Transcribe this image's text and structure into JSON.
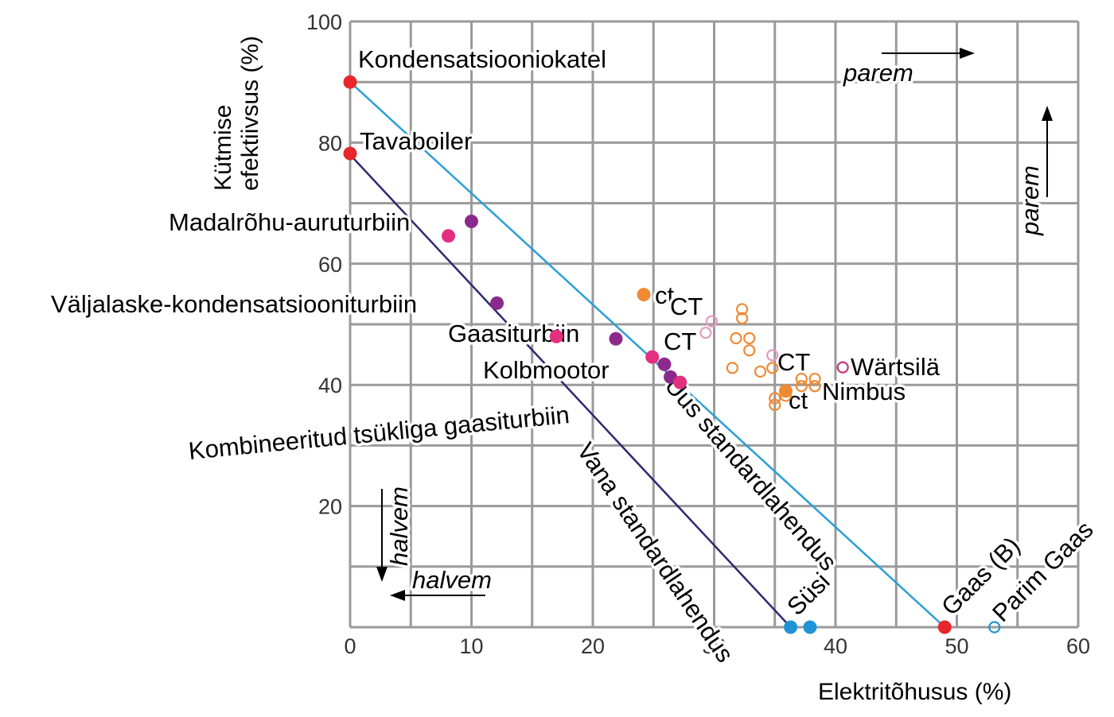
{
  "chart_data": {
    "type": "scatter",
    "xlabel": "Elektritõhusus (%)",
    "ylabel": [
      "Kütmise",
      "efektiivsus (%)"
    ],
    "xlim": [
      0,
      60
    ],
    "ylim": [
      0,
      100
    ],
    "xticks": [
      0,
      10,
      20,
      30,
      40,
      50,
      60
    ],
    "yticks": [
      20,
      40,
      60,
      80,
      100
    ],
    "grid": true,
    "colors": {
      "red": "#e8262b",
      "purple": "#8b2a8c",
      "pink": "#e32f7f",
      "orange": "#ef8a34",
      "lightpink": "#e59ac0",
      "magenta": "#c2367f",
      "blue": "#1f93d6",
      "grid": "#9a9a9a",
      "new_line": "#2a9fd6",
      "old_line": "#2e2870"
    },
    "lines": [
      {
        "name": "Uus standardlahendus",
        "points": [
          [
            0,
            90
          ],
          [
            49,
            0
          ]
        ],
        "color": "new_line"
      },
      {
        "name": "Vana standardlahendus",
        "points": [
          [
            0,
            78
          ],
          [
            36.3,
            0
          ]
        ],
        "color": "old_line"
      }
    ],
    "points": [
      {
        "x": 0,
        "y": 90,
        "color": "red",
        "filled": true
      },
      {
        "x": 0,
        "y": 78.2,
        "color": "red",
        "filled": true
      },
      {
        "x": 10,
        "y": 67,
        "color": "purple",
        "filled": true
      },
      {
        "x": 8.1,
        "y": 64.6,
        "color": "pink",
        "filled": true
      },
      {
        "x": 12.1,
        "y": 53.5,
        "color": "purple",
        "filled": true
      },
      {
        "x": 17,
        "y": 48,
        "color": "pink",
        "filled": true
      },
      {
        "x": 21.9,
        "y": 47.6,
        "color": "purple",
        "filled": true
      },
      {
        "x": 24.9,
        "y": 44.6,
        "color": "pink",
        "filled": true
      },
      {
        "x": 25.9,
        "y": 43.4,
        "color": "purple",
        "filled": true
      },
      {
        "x": 26.4,
        "y": 41.3,
        "color": "purple",
        "filled": true
      },
      {
        "x": 27.2,
        "y": 40.4,
        "color": "pink",
        "filled": true
      },
      {
        "x": 24.2,
        "y": 54.9,
        "color": "orange",
        "filled": true
      },
      {
        "x": 35.9,
        "y": 39,
        "color": "orange",
        "filled": true
      },
      {
        "x": 32.3,
        "y": 52.5,
        "color": "orange",
        "filled": false
      },
      {
        "x": 32.3,
        "y": 51,
        "color": "orange",
        "filled": false
      },
      {
        "x": 31.8,
        "y": 47.7,
        "color": "orange",
        "filled": false
      },
      {
        "x": 32.9,
        "y": 47.7,
        "color": "orange",
        "filled": false
      },
      {
        "x": 32.9,
        "y": 45.7,
        "color": "orange",
        "filled": false
      },
      {
        "x": 31.5,
        "y": 42.8,
        "color": "orange",
        "filled": false
      },
      {
        "x": 33.8,
        "y": 42.2,
        "color": "orange",
        "filled": false
      },
      {
        "x": 34.8,
        "y": 42.8,
        "color": "orange",
        "filled": false
      },
      {
        "x": 37.2,
        "y": 41,
        "color": "orange",
        "filled": false
      },
      {
        "x": 38.3,
        "y": 41,
        "color": "orange",
        "filled": false
      },
      {
        "x": 37.2,
        "y": 39.8,
        "color": "orange",
        "filled": false
      },
      {
        "x": 38.3,
        "y": 39.8,
        "color": "orange",
        "filled": false
      },
      {
        "x": 35,
        "y": 37.8,
        "color": "orange",
        "filled": false
      },
      {
        "x": 35,
        "y": 36.7,
        "color": "orange",
        "filled": false
      },
      {
        "x": 35.9,
        "y": 38.2,
        "color": "orange",
        "filled": false
      },
      {
        "x": 29.8,
        "y": 50.5,
        "color": "lightpink",
        "filled": false
      },
      {
        "x": 29.3,
        "y": 48.6,
        "color": "lightpink",
        "filled": false
      },
      {
        "x": 34.8,
        "y": 44.9,
        "color": "lightpink",
        "filled": false
      },
      {
        "x": 40.6,
        "y": 42.9,
        "color": "magenta",
        "filled": false
      },
      {
        "x": 36.3,
        "y": 0,
        "color": "blue",
        "filled": true
      },
      {
        "x": 37.9,
        "y": 0,
        "color": "blue",
        "filled": true
      },
      {
        "x": 49,
        "y": 0,
        "color": "red",
        "filled": true
      },
      {
        "x": 53.1,
        "y": 0,
        "color": "blue",
        "filled": false
      }
    ],
    "annotations": [
      "Kondensatsiooniokatel",
      "Tavaboiler",
      "Madalrõhu-auruturbiin",
      "Väljalaske-kondensatsiooniturbiin",
      "Gaasiturbiin",
      "Kolbmootor",
      "Kombineeritud tsükliga gaasiturbiin",
      "ct",
      "CT",
      "CT",
      "CT",
      "ct",
      "Nimbus",
      "Wärtsilä",
      "Uus standardlahendus",
      "Vana standardlahendus",
      "Süsi",
      "Gaas (B)",
      "Parim Gaas"
    ],
    "direction_labels": {
      "better_x": "parem",
      "better_y": "parem",
      "worse_x": "halvem",
      "worse_y": "halvem"
    }
  }
}
